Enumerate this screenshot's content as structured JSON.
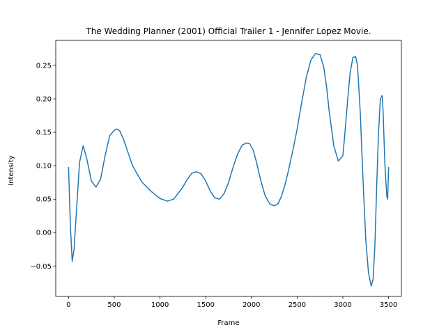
{
  "chart_data": {
    "type": "line",
    "title": "The Wedding Planner (2001) Official Trailer 1 - Jennifer Lopez Movie.",
    "xlabel": "Frame",
    "ylabel": "Intensity",
    "xlim": [
      -140,
      3640
    ],
    "ylim": [
      -0.0955,
      0.2875
    ],
    "x_ticks": [
      0,
      500,
      1000,
      1500,
      2000,
      2500,
      3000,
      3500
    ],
    "y_ticks": [
      -0.05,
      0.0,
      0.05,
      0.1,
      0.15,
      0.2,
      0.25
    ],
    "x_tick_labels": [
      "0",
      "500",
      "1000",
      "1500",
      "2000",
      "2500",
      "3000",
      "3500"
    ],
    "y_tick_labels": [
      "−0.05",
      "0.00",
      "0.05",
      "0.10",
      "0.15",
      "0.20",
      "0.25"
    ],
    "grid": false,
    "legend": "none",
    "series": [
      {
        "color": "#1f77b4",
        "x": [
          0,
          20,
          40,
          60,
          90,
          120,
          160,
          200,
          250,
          300,
          350,
          400,
          450,
          500,
          530,
          560,
          600,
          650,
          700,
          800,
          900,
          1000,
          1080,
          1150,
          1250,
          1300,
          1350,
          1400,
          1450,
          1500,
          1550,
          1600,
          1650,
          1700,
          1750,
          1800,
          1850,
          1900,
          1950,
          1980,
          2020,
          2050,
          2100,
          2150,
          2200,
          2250,
          2290,
          2330,
          2370,
          2400,
          2450,
          2500,
          2550,
          2600,
          2650,
          2700,
          2750,
          2790,
          2820,
          2850,
          2900,
          2950,
          3000,
          3020,
          3050,
          3080,
          3110,
          3140,
          3160,
          3190,
          3220,
          3250,
          3280,
          3310,
          3330,
          3350,
          3370,
          3390,
          3410,
          3430,
          3440,
          3460,
          3480,
          3490,
          3500
        ],
        "y": [
          0.098,
          0.01,
          -0.043,
          -0.025,
          0.04,
          0.105,
          0.13,
          0.11,
          0.077,
          0.068,
          0.08,
          0.115,
          0.145,
          0.153,
          0.155,
          0.152,
          0.14,
          0.12,
          0.1,
          0.076,
          0.062,
          0.051,
          0.047,
          0.05,
          0.068,
          0.08,
          0.089,
          0.091,
          0.088,
          0.077,
          0.062,
          0.052,
          0.05,
          0.058,
          0.075,
          0.098,
          0.118,
          0.131,
          0.134,
          0.133,
          0.123,
          0.108,
          0.079,
          0.055,
          0.043,
          0.04,
          0.043,
          0.055,
          0.073,
          0.09,
          0.121,
          0.155,
          0.195,
          0.232,
          0.258,
          0.268,
          0.266,
          0.248,
          0.22,
          0.182,
          0.13,
          0.107,
          0.115,
          0.145,
          0.195,
          0.24,
          0.262,
          0.263,
          0.25,
          0.18,
          0.08,
          -0.01,
          -0.06,
          -0.08,
          -0.07,
          -0.02,
          0.07,
          0.15,
          0.2,
          0.205,
          0.18,
          0.1,
          0.055,
          0.05,
          0.098
        ]
      }
    ]
  }
}
